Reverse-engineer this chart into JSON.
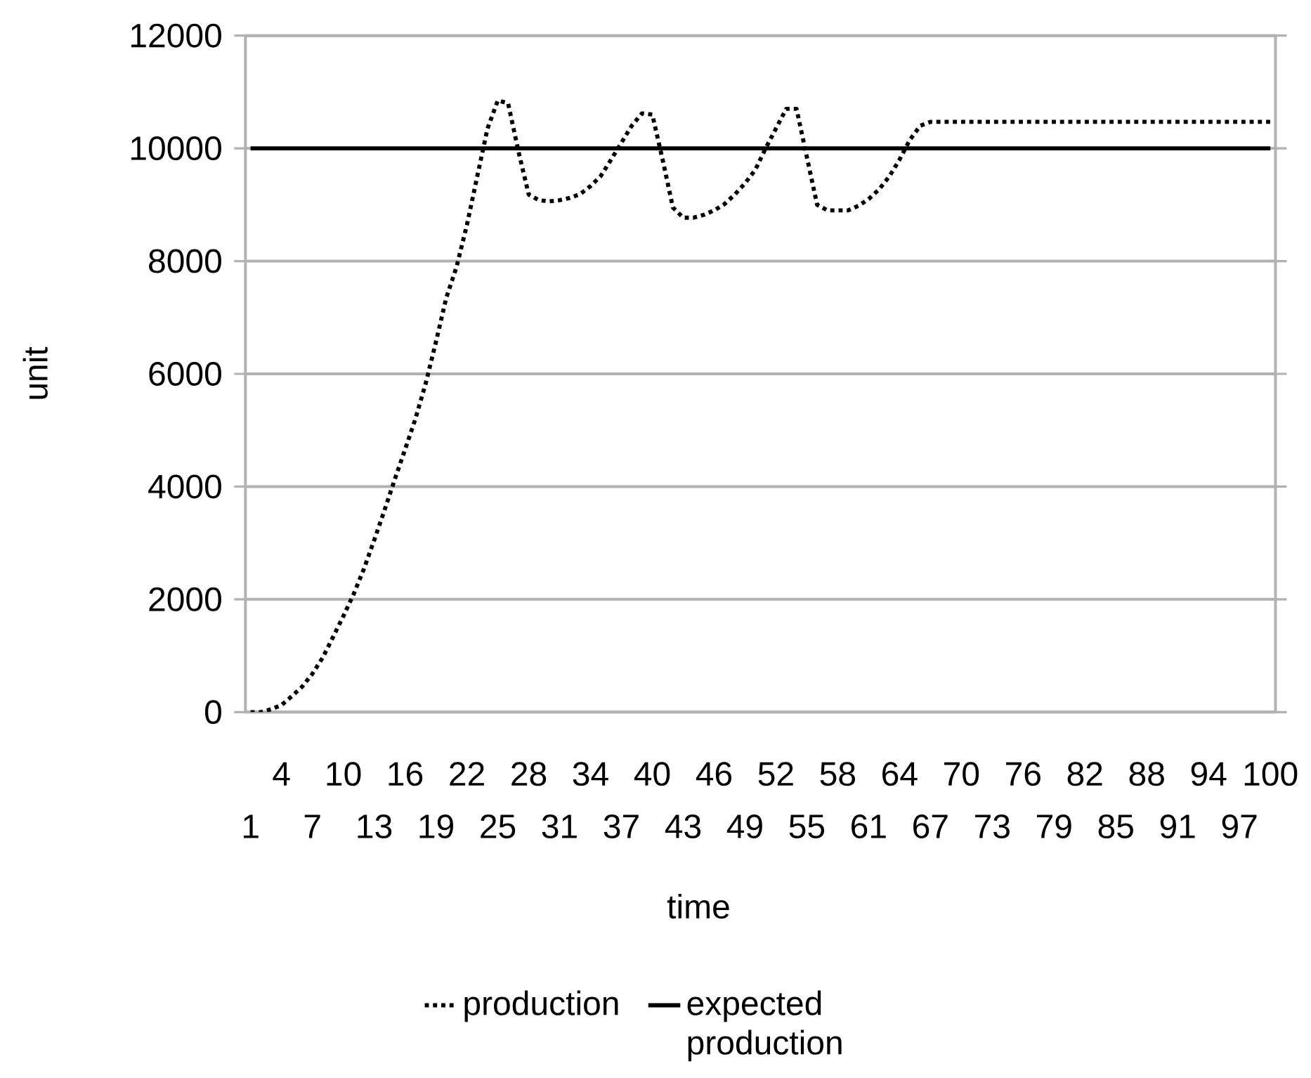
{
  "chart_data": {
    "type": "line",
    "xlabel": "time",
    "ylabel": "unit",
    "categories": [
      "1",
      null,
      null,
      "4",
      null,
      null,
      "7",
      null,
      null,
      "10",
      null,
      null,
      "13",
      null,
      null,
      "16",
      null,
      null,
      "19",
      null,
      null,
      "22",
      null,
      null,
      "25",
      null,
      null,
      "28",
      null,
      null,
      "31",
      null,
      null,
      "34",
      null,
      null,
      "37",
      null,
      null,
      "40",
      null,
      null,
      "43",
      null,
      null,
      "46",
      null,
      null,
      "49",
      null,
      null,
      "52",
      null,
      null,
      "55",
      null,
      null,
      "58",
      null,
      null,
      "61",
      null,
      null,
      "64",
      null,
      null,
      "67",
      null,
      null,
      "70",
      null,
      null,
      "73",
      null,
      null,
      "76",
      null,
      null,
      "79",
      null,
      null,
      "82",
      null,
      null,
      "85",
      null,
      null,
      "88",
      null,
      null,
      "91",
      null,
      null,
      "94",
      null,
      null,
      "97",
      null,
      null,
      "100"
    ],
    "series": [
      {
        "name": "production",
        "color": "#000000",
        "line_style": "dotted",
        "values": [
          0,
          0,
          50,
          125,
          280,
          450,
          680,
          965,
          1330,
          1700,
          2090,
          2540,
          3050,
          3580,
          4130,
          4660,
          5200,
          5830,
          6570,
          7350,
          7900,
          8640,
          9500,
          10350,
          10850,
          10800,
          9950,
          9180,
          9080,
          9060,
          9080,
          9120,
          9190,
          9330,
          9510,
          9800,
          10100,
          10400,
          10620,
          10600,
          9800,
          8950,
          8770,
          8770,
          8820,
          8900,
          9010,
          9180,
          9380,
          9620,
          10000,
          10350,
          10700,
          10700,
          9850,
          9000,
          8900,
          8900,
          8900,
          8980,
          9100,
          9270,
          9500,
          9800,
          10150,
          10400,
          10470,
          10470,
          10470,
          10470,
          10470,
          10470,
          10470,
          10470,
          10470,
          10470,
          10470,
          10470,
          10470,
          10470,
          10470,
          10470,
          10470,
          10470,
          10470,
          10470,
          10470,
          10470,
          10470,
          10470,
          10470,
          10470,
          10470,
          10470,
          10470,
          10470,
          10470,
          10470,
          10470,
          10470
        ]
      },
      {
        "name": "expected production",
        "color": "#000000",
        "line_style": "solid",
        "values": [
          10000,
          10000,
          10000,
          10000,
          10000,
          10000,
          10000,
          10000,
          10000,
          10000,
          10000,
          10000,
          10000,
          10000,
          10000,
          10000,
          10000,
          10000,
          10000,
          10000,
          10000,
          10000,
          10000,
          10000,
          10000,
          10000,
          10000,
          10000,
          10000,
          10000,
          10000,
          10000,
          10000,
          10000,
          10000,
          10000,
          10000,
          10000,
          10000,
          10000,
          10000,
          10000,
          10000,
          10000,
          10000,
          10000,
          10000,
          10000,
          10000,
          10000,
          10000,
          10000,
          10000,
          10000,
          10000,
          10000,
          10000,
          10000,
          10000,
          10000,
          10000,
          10000,
          10000,
          10000,
          10000,
          10000,
          10000,
          10000,
          10000,
          10000,
          10000,
          10000,
          10000,
          10000,
          10000,
          10000,
          10000,
          10000,
          10000,
          10000,
          10000,
          10000,
          10000,
          10000,
          10000,
          10000,
          10000,
          10000,
          10000,
          10000,
          10000,
          10000,
          10000,
          10000,
          10000,
          10000,
          10000,
          10000,
          10000,
          10000
        ]
      }
    ],
    "ylim": [
      0,
      12000
    ],
    "yticks": [
      0,
      2000,
      4000,
      6000,
      8000,
      10000,
      12000
    ],
    "grid": "y",
    "legend": "bottom",
    "marker": "none"
  }
}
